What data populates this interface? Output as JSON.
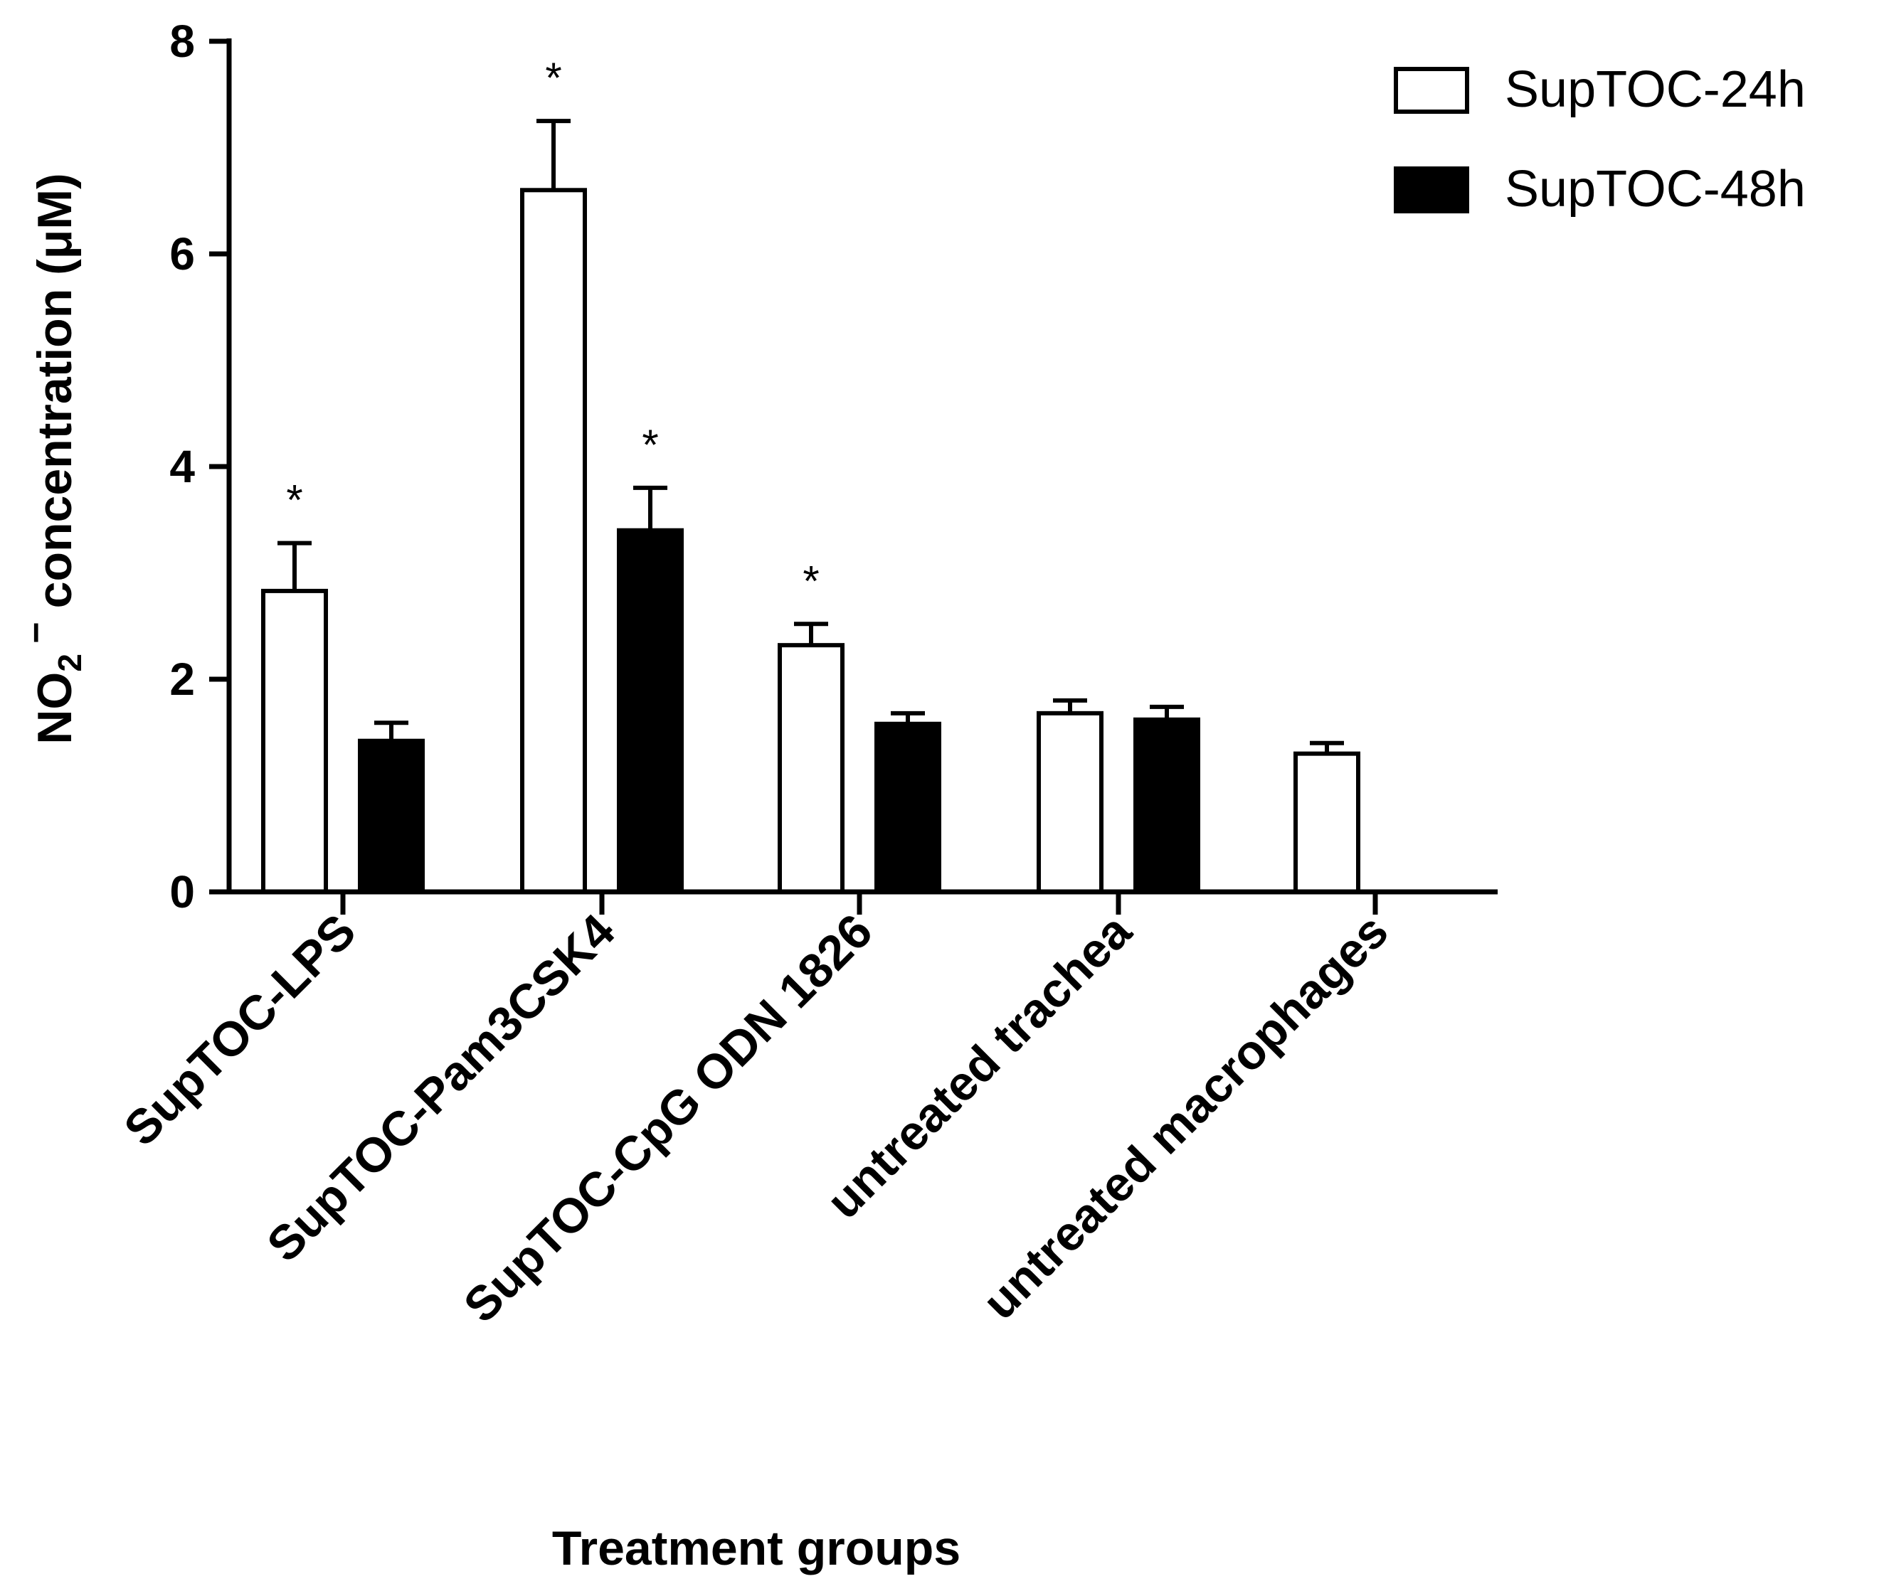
{
  "chart_data": {
    "type": "bar",
    "title": "",
    "xlabel": "Treatment groups",
    "ylabel": {
      "prefix": "NO",
      "subscript": "2",
      "superscript": "−",
      "suffix": " concentration (μM)"
    },
    "ylim": [
      0,
      8
    ],
    "yticks": [
      0,
      2,
      4,
      6,
      8
    ],
    "grid": false,
    "legend_position": "top-right",
    "categories": [
      "SupTOC-LPS",
      "SupTOC-Pam3CSK4",
      "SupTOC-CpG ODN 1826",
      "untreated trachea",
      "untreated macrophages"
    ],
    "series": [
      {
        "name": "SupTOC-24h",
        "fill": "#ffffff",
        "values": [
          2.83,
          6.6,
          2.32,
          1.68,
          1.3
        ],
        "errors": [
          0.45,
          0.65,
          0.2,
          0.12,
          0.1
        ],
        "significant": [
          true,
          true,
          true,
          false,
          false
        ]
      },
      {
        "name": "SupTOC-48h",
        "fill": "#000000",
        "values": [
          1.42,
          3.4,
          1.58,
          1.62,
          null
        ],
        "errors": [
          0.17,
          0.4,
          0.1,
          0.12,
          null
        ],
        "significant": [
          false,
          true,
          false,
          false,
          false
        ]
      }
    ],
    "significance_marker": "*",
    "colors": {
      "stroke": "#000000"
    }
  }
}
